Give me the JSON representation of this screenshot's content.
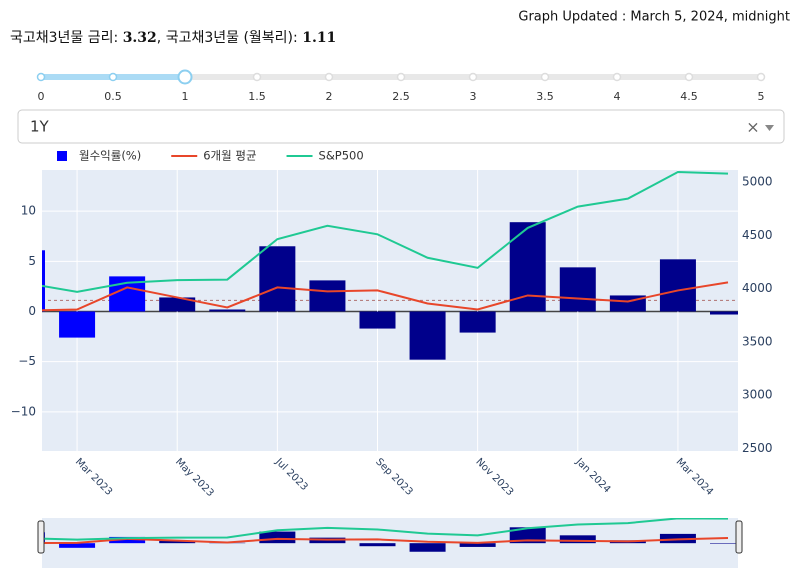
{
  "header": {
    "updated": "Graph Updated : March 5, 2024, midnight",
    "rate_label": "국고채3년물 금리:",
    "rate": 3.32,
    "monthly_label": "국고채3년물 (월복리):",
    "monthly_rate": 1.11
  },
  "slider": {
    "ticks": [
      0,
      0.5,
      1,
      1.5,
      2,
      2.5,
      3,
      3.5,
      4,
      4.5,
      5
    ],
    "value": 1
  },
  "dropdown": {
    "value": "1Y",
    "clear": "×"
  },
  "chart_data": {
    "type": "bar",
    "x": [
      "2023-02",
      "2023-03",
      "2023-04",
      "2023-05",
      "2023-06",
      "2023-07",
      "2023-08",
      "2023-09",
      "2023-10",
      "2023-11",
      "2023-12",
      "2024-01",
      "2024-02",
      "2024-03",
      "2024-04"
    ],
    "xlim": [
      "2023-02",
      "2024-04"
    ],
    "xticks": [
      {
        "value": "2023-03",
        "label": "Mar 2023"
      },
      {
        "value": "2023-05",
        "label": "May 2023"
      },
      {
        "value": "2023-07",
        "label": "Jul 2023"
      },
      {
        "value": "2023-09",
        "label": "Sep 2023"
      },
      {
        "value": "2023-11",
        "label": "Nov 2023"
      },
      {
        "value": "2024-01",
        "label": "Jan 2024"
      },
      {
        "value": "2024-03",
        "label": "Mar 2024"
      }
    ],
    "ylim": [
      -13.9,
      14.1
    ],
    "yticks": [
      10,
      5,
      0,
      {
        "value": -5,
        "label": "−5"
      },
      {
        "value": -10,
        "label": "−10"
      }
    ],
    "y2lim": [
      2475,
      5114
    ],
    "y2ticks": [
      2500,
      3000,
      3500,
      4000,
      4500,
      5000
    ],
    "grid": true,
    "series": [
      {
        "name": "월수익률(%)",
        "type": "bar",
        "color": "#0000ff",
        "colors": [
          "#0000ff",
          "#0000ff",
          "#0000ff",
          "#00008b",
          "#00008b",
          "#00008b",
          "#00008b",
          "#00008b",
          "#00008b",
          "#00008b",
          "#00008b",
          "#00008b",
          "#00008b",
          "#00008b",
          "#00008b"
        ],
        "values": [
          6.1,
          -2.6,
          3.5,
          1.4,
          0.2,
          6.5,
          3.1,
          -1.7,
          -4.8,
          -2.1,
          8.9,
          4.4,
          1.6,
          5.2,
          -0.3
        ]
      },
      {
        "name": "6개월 평균",
        "type": "line",
        "color": "#e8462a",
        "values": [
          0.1,
          0.2,
          2.4,
          1.4,
          0.4,
          2.4,
          2.0,
          2.1,
          0.8,
          0.2,
          1.6,
          1.3,
          1.0,
          2.1,
          2.9
        ]
      },
      {
        "name": "S&P500",
        "type": "line",
        "color": "#1fc993",
        "axis": "y2",
        "values": [
          4050,
          3970,
          4055,
          4080,
          4085,
          4465,
          4590,
          4510,
          4290,
          4195,
          4570,
          4770,
          4845,
          5095,
          5080
        ]
      }
    ]
  }
}
